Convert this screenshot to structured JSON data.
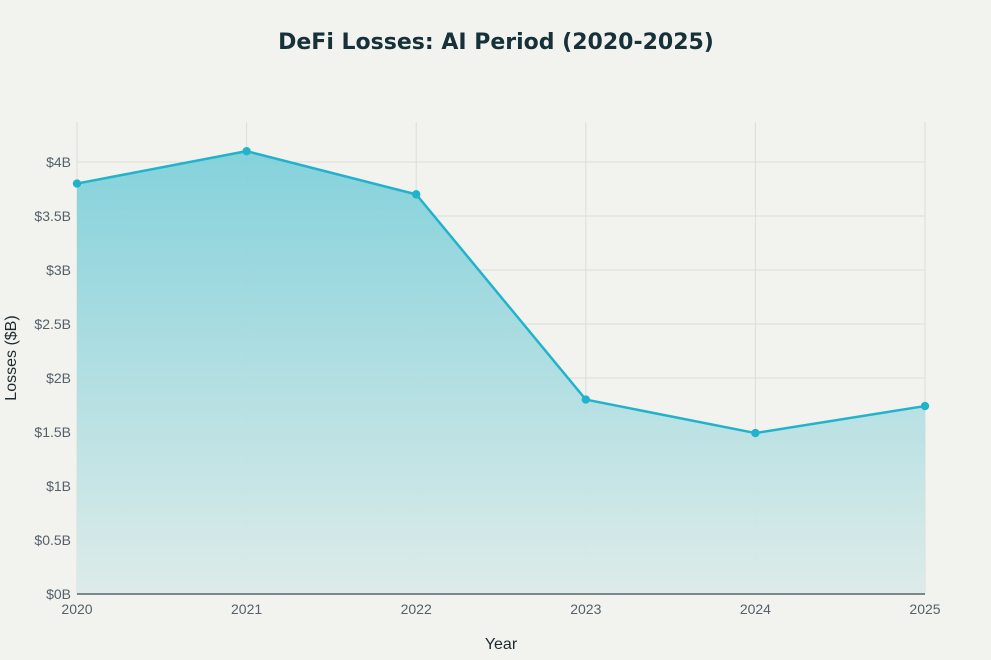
{
  "chart_data": {
    "type": "area",
    "title": "DeFi Losses: AI Period (2020-2025)",
    "xlabel": "Year",
    "ylabel": "Losses ($B)",
    "categories": [
      "2020",
      "2021",
      "2022",
      "2023",
      "2024",
      "2025"
    ],
    "series": [
      {
        "name": "Losses ($B)",
        "values": [
          3.8,
          4.1,
          3.7,
          1.8,
          1.49,
          1.74
        ]
      }
    ],
    "ylim": [
      0,
      4.37
    ],
    "yticks": [
      0,
      0.5,
      1,
      1.5,
      2,
      2.5,
      3,
      3.5,
      4
    ],
    "ytick_labels": [
      "$0B",
      "$0.5B",
      "$1B",
      "$1.5B",
      "$2B",
      "$2.5B",
      "$3B",
      "$3.5B",
      "$4B"
    ],
    "grid": true,
    "legend": "none",
    "colors": {
      "line": "#20b3cb",
      "fill_top": "#7fd0da",
      "fill_bottom": "#dcebe9"
    }
  }
}
